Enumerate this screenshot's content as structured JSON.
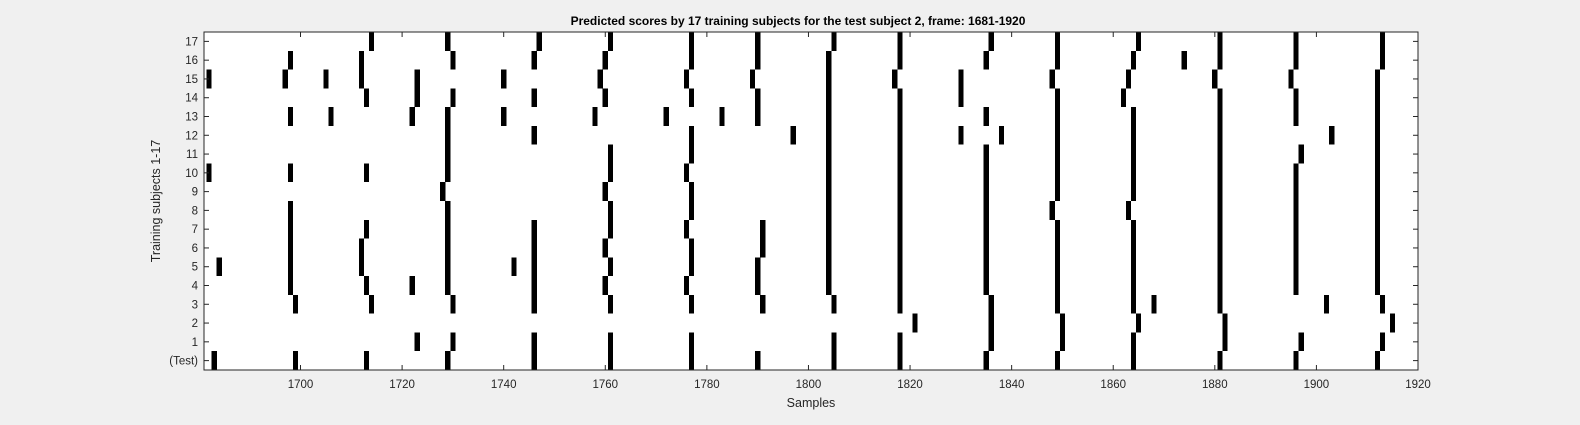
{
  "chart_data": {
    "type": "heatmap",
    "title": "Predicted scores by 17 training subjects for the test subject 2, frame: 1681-1920",
    "xlabel": "Samples",
    "ylabel": "Training subjects 1-17",
    "xlim": [
      1681,
      1920
    ],
    "x_ticks": [
      1700,
      1720,
      1740,
      1760,
      1780,
      1800,
      1820,
      1840,
      1860,
      1880,
      1900,
      1920
    ],
    "y_tick_labels": [
      "(Test)",
      "1",
      "2",
      "3",
      "4",
      "5",
      "6",
      "7",
      "8",
      "9",
      "10",
      "11",
      "12",
      "13",
      "14",
      "15",
      "16",
      "17"
    ],
    "grid": false,
    "colors": {
      "mark": "#000000",
      "background": "#ffffff",
      "figure": "#f0f0f0",
      "axis": "#262626"
    },
    "rows": [
      {
        "label": "(Test)",
        "samples": [
          1683,
          1699,
          1713,
          1729,
          1746,
          1761,
          1777,
          1790,
          1805,
          1818,
          1835,
          1849,
          1864,
          1881,
          1896,
          1912
        ]
      },
      {
        "label": "1",
        "samples": [
          1723,
          1730,
          1746,
          1761,
          1777,
          1805,
          1818,
          1836,
          1850,
          1864,
          1882,
          1897,
          1913
        ]
      },
      {
        "label": "2",
        "samples": [
          1821,
          1836,
          1850,
          1865,
          1882,
          1915
        ]
      },
      {
        "label": "3",
        "samples": [
          1699,
          1714,
          1730,
          1746,
          1761,
          1777,
          1791,
          1805,
          1818,
          1836,
          1849,
          1864,
          1868,
          1881,
          1902,
          1913
        ]
      },
      {
        "label": "4",
        "samples": [
          1698,
          1713,
          1722,
          1729,
          1746,
          1760,
          1776,
          1790,
          1804,
          1818,
          1835,
          1849,
          1864,
          1881,
          1896,
          1912
        ]
      },
      {
        "label": "5",
        "samples": [
          1684,
          1698,
          1712,
          1729,
          1742,
          1746,
          1761,
          1777,
          1790,
          1804,
          1818,
          1835,
          1849,
          1864,
          1881,
          1896,
          1912
        ]
      },
      {
        "label": "6",
        "samples": [
          1698,
          1712,
          1729,
          1746,
          1760,
          1777,
          1791,
          1804,
          1818,
          1835,
          1849,
          1864,
          1881,
          1896,
          1912
        ]
      },
      {
        "label": "7",
        "samples": [
          1698,
          1713,
          1729,
          1746,
          1761,
          1776,
          1791,
          1804,
          1818,
          1835,
          1849,
          1864,
          1881,
          1896,
          1912
        ]
      },
      {
        "label": "8",
        "samples": [
          1698,
          1729,
          1761,
          1777,
          1804,
          1818,
          1835,
          1848,
          1863,
          1881,
          1896,
          1912
        ]
      },
      {
        "label": "9",
        "samples": [
          1728,
          1760,
          1777,
          1804,
          1818,
          1835,
          1849,
          1864,
          1881,
          1896,
          1912
        ]
      },
      {
        "label": "10",
        "samples": [
          1682,
          1698,
          1713,
          1729,
          1761,
          1776,
          1804,
          1818,
          1835,
          1849,
          1864,
          1881,
          1896,
          1912
        ]
      },
      {
        "label": "11",
        "samples": [
          1729,
          1761,
          1777,
          1804,
          1818,
          1835,
          1849,
          1864,
          1881,
          1897,
          1912
        ]
      },
      {
        "label": "12",
        "samples": [
          1729,
          1746,
          1777,
          1797,
          1804,
          1818,
          1830,
          1838,
          1849,
          1864,
          1881,
          1903,
          1912
        ]
      },
      {
        "label": "13",
        "samples": [
          1698,
          1706,
          1722,
          1729,
          1740,
          1758,
          1772,
          1783,
          1790,
          1804,
          1818,
          1835,
          1849,
          1864,
          1881,
          1896,
          1912
        ]
      },
      {
        "label": "14",
        "samples": [
          1713,
          1723,
          1730,
          1746,
          1760,
          1777,
          1790,
          1804,
          1818,
          1830,
          1849,
          1862,
          1881,
          1896,
          1912
        ]
      },
      {
        "label": "15",
        "samples": [
          1682,
          1697,
          1705,
          1712,
          1723,
          1740,
          1759,
          1776,
          1789,
          1804,
          1817,
          1830,
          1848,
          1863,
          1880,
          1895,
          1912
        ]
      },
      {
        "label": "16",
        "samples": [
          1698,
          1712,
          1730,
          1746,
          1760,
          1777,
          1790,
          1804,
          1818,
          1835,
          1849,
          1864,
          1874,
          1881,
          1896,
          1913
        ]
      },
      {
        "label": "17",
        "samples": [
          1714,
          1729,
          1747,
          1761,
          1777,
          1790,
          1805,
          1818,
          1836,
          1849,
          1865,
          1881,
          1896,
          1913
        ]
      }
    ]
  }
}
